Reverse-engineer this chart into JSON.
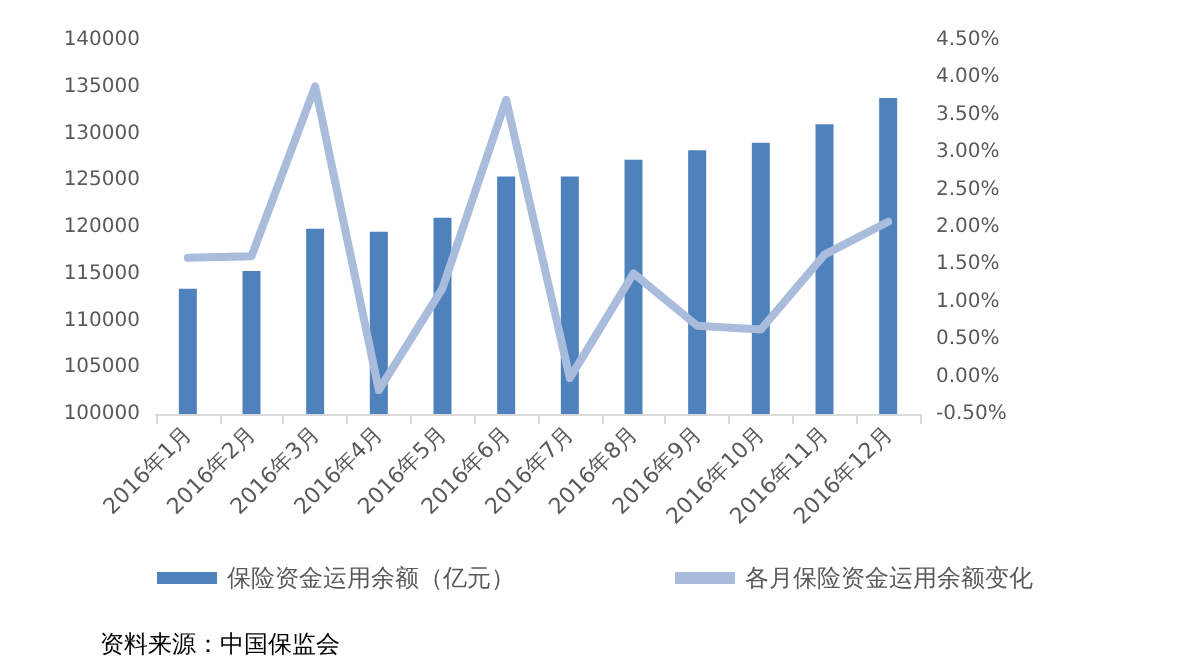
{
  "chart_data": {
    "type": "bar",
    "categories": [
      "2016年1月",
      "2016年2月",
      "2016年3月",
      "2016年4月",
      "2016年5月",
      "2016年6月",
      "2016年7月",
      "2016年8月",
      "2016年9月",
      "2016年10月",
      "2016年11月",
      "2016年12月"
    ],
    "series": [
      {
        "name": "保险资金运用余额（亿元）",
        "color": "#4f81bd",
        "values": [
          113400,
          115300,
          119800,
          119500,
          121000,
          125400,
          125400,
          127200,
          128200,
          129000,
          131000,
          133800
        ]
      },
      {
        "name": "各月保险资金运用余额变化",
        "type": "line",
        "axis": "y2",
        "color": "#a9bcdc",
        "values": [
          1.59,
          1.61,
          3.88,
          -0.18,
          1.18,
          3.7,
          -0.02,
          1.38,
          0.68,
          0.63,
          1.63,
          2.07
        ]
      }
    ],
    "ylim": [
      100000,
      140000
    ],
    "yticks": [
      100000,
      105000,
      110000,
      115000,
      120000,
      125000,
      130000,
      135000,
      140000
    ],
    "y2lim": [
      -0.5,
      4.5
    ],
    "y2ticks": [
      {
        "value": -0.5,
        "label": "-0.50%"
      },
      {
        "value": 0,
        "label": "0.00%"
      },
      {
        "value": 0.5,
        "label": "0.50%"
      },
      {
        "value": 1,
        "label": "1.00%"
      },
      {
        "value": 1.5,
        "label": "1.50%"
      },
      {
        "value": 2,
        "label": "2.00%"
      },
      {
        "value": 2.5,
        "label": "2.50%"
      },
      {
        "value": 3,
        "label": "3.00%"
      },
      {
        "value": 3.5,
        "label": "3.50%"
      },
      {
        "value": 4,
        "label": "4.00%"
      },
      {
        "value": 4.5,
        "label": "4.50%"
      }
    ],
    "grid": false,
    "legend": "bottom",
    "marker": "none",
    "line_style": "solid",
    "annotations": [
      "资料来源：中国保监会"
    ]
  }
}
